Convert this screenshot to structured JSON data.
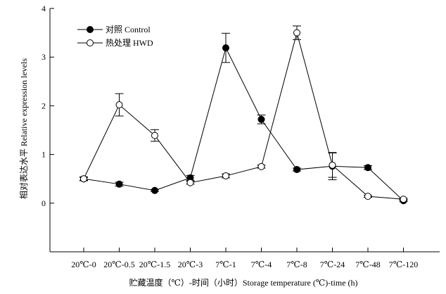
{
  "chart_data": {
    "type": "line",
    "xlabel": "贮藏温度（℃）-时间（小时）Storage temperature (℃)-time (h)",
    "ylabel": "相对表达水平 Relative expression levels",
    "ylim": [
      -1,
      4
    ],
    "yticks": [
      0,
      1,
      2,
      3,
      4
    ],
    "categories": [
      "20℃-0",
      "20℃-0.5",
      "20℃-1.5",
      "20℃-3",
      "7℃-1",
      "7℃-4",
      "7℃-8",
      "7℃-24",
      "7℃-48",
      "7℃-120"
    ],
    "legend_position": "top-left",
    "grid": false,
    "series": [
      {
        "name": "对照 Control",
        "marker": "filled-circle",
        "color": "#000000",
        "values": [
          0.5,
          0.39,
          0.26,
          0.52,
          3.19,
          1.72,
          0.69,
          0.76,
          0.73,
          0.05
        ],
        "errors": [
          0.03,
          0.04,
          0.02,
          0.05,
          0.3,
          0.09,
          0.03,
          0.28,
          0.04,
          0.02
        ]
      },
      {
        "name": "热处理 HWD",
        "marker": "open-circle",
        "color": "#000000",
        "values": [
          0.5,
          2.02,
          1.39,
          0.42,
          0.56,
          0.75,
          3.5,
          0.78,
          0.14,
          0.08
        ],
        "errors": [
          0.04,
          0.23,
          0.12,
          0.03,
          0.04,
          0.03,
          0.14,
          0.25,
          0.02,
          0.02
        ]
      }
    ]
  }
}
